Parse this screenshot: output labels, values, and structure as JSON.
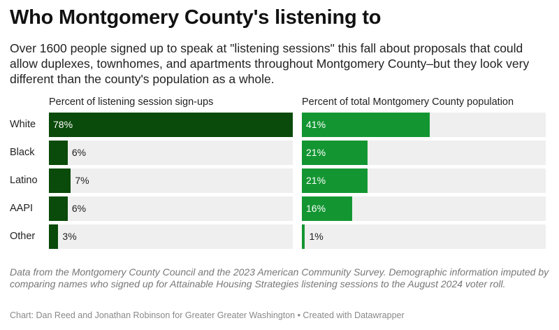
{
  "title": "Who Montgomery County's listening to",
  "subtitle": "Over 1600 people signed up to speak at \"listening sessions\" this fall about proposals that could allow duplexes, townhomes, and apartments throughout Montgomery County–but they look very different than the county's population as a whole.",
  "notes": "Data from the Montgomery County Council and the 2023 American Community Survey. Demographic information imputed by comparing names who signed up for Attainable Housing Strategies listening sessions to the August 2024 voter roll.",
  "credit": "Chart: Dan Reed and Jonathan Robinson for Greater Greater Washington • Created with Datawrapper",
  "colors": {
    "left_bar": "#0a4a0a",
    "right_bar": "#139632",
    "track": "#efefef"
  },
  "chart_data": {
    "type": "bar",
    "orientation": "horizontal",
    "categories": [
      "White",
      "Black",
      "Latino",
      "AAPI",
      "Other"
    ],
    "series": [
      {
        "name": "Percent of listening session sign-ups",
        "values": [
          78,
          6,
          7,
          6,
          3
        ],
        "labels": [
          "78%",
          "6%",
          "7%",
          "6%",
          "3%"
        ]
      },
      {
        "name": "Percent of total Montgomery County population",
        "values": [
          41,
          21,
          21,
          16,
          1
        ],
        "labels": [
          "41%",
          "21%",
          "21%",
          "16%",
          "1%"
        ]
      }
    ],
    "xlim": [
      0,
      78
    ],
    "unit": "%"
  }
}
